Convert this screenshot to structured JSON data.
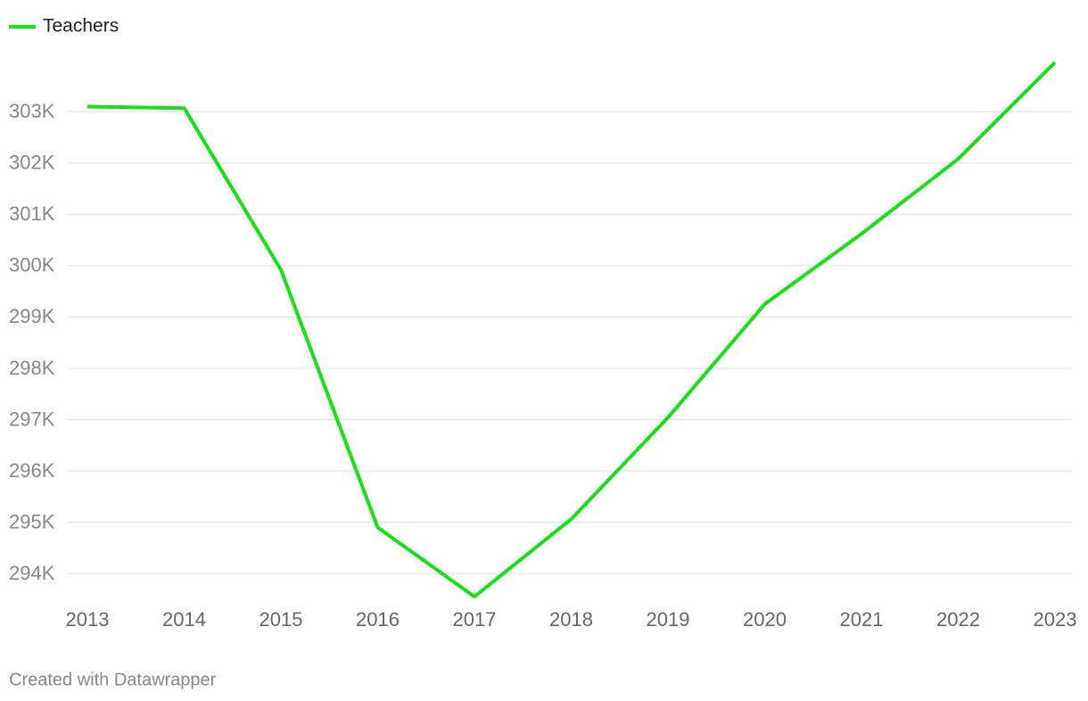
{
  "chart_data": {
    "type": "line",
    "x": [
      "2013",
      "2014",
      "2015",
      "2016",
      "2017",
      "2018",
      "2019",
      "2020",
      "2021",
      "2022",
      "2023"
    ],
    "series": [
      {
        "name": "Teachers",
        "color": "#17e017",
        "values": [
          303100,
          303070,
          299920,
          294900,
          293550,
          295060,
          297040,
          299250,
          300620,
          302080,
          303960
        ]
      }
    ],
    "ylim": [
      293550,
      303960
    ],
    "yticks": [
      {
        "value": 294000,
        "label": "294K"
      },
      {
        "value": 295000,
        "label": "295K"
      },
      {
        "value": 296000,
        "label": "296K"
      },
      {
        "value": 297000,
        "label": "297K"
      },
      {
        "value": 298000,
        "label": "298K"
      },
      {
        "value": 299000,
        "label": "299K"
      },
      {
        "value": 300000,
        "label": "300K"
      },
      {
        "value": 301000,
        "label": "301K"
      },
      {
        "value": 302000,
        "label": "302K"
      },
      {
        "value": 303000,
        "label": "303K"
      }
    ],
    "grid": true,
    "legend": "top-left",
    "footer": "Created with Datawrapper"
  }
}
